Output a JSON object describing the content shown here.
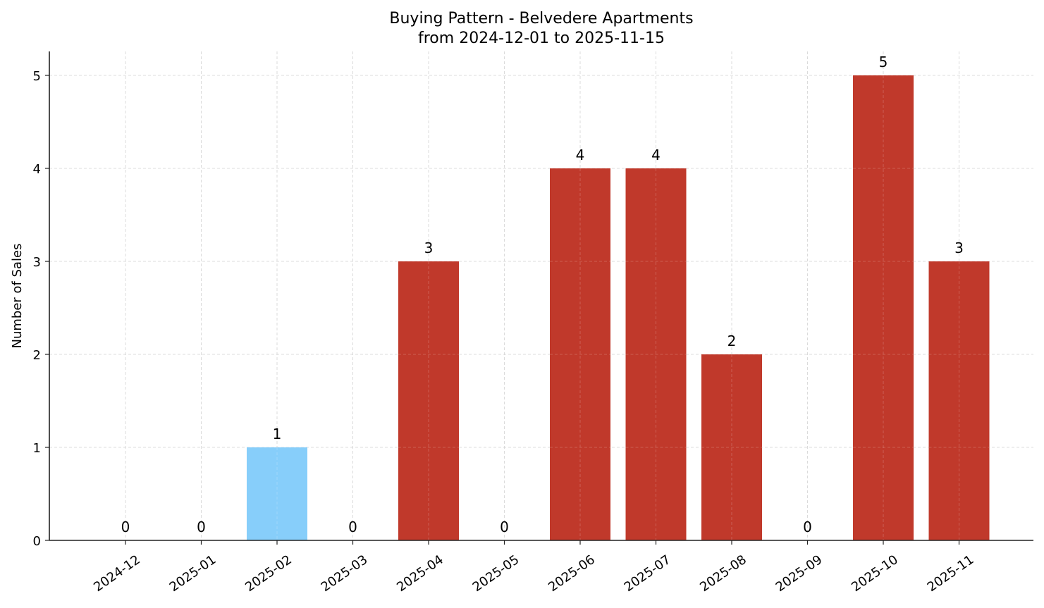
{
  "chart_data": {
    "type": "bar",
    "title": "Buying Pattern - Belvedere Apartments",
    "subtitle": "from 2024-12-01 to 2025-11-15",
    "xlabel": "",
    "ylabel": "Number of Sales",
    "categories": [
      "2024-12",
      "2025-01",
      "2025-02",
      "2025-03",
      "2025-04",
      "2025-05",
      "2025-06",
      "2025-07",
      "2025-08",
      "2025-09",
      "2025-10",
      "2025-11"
    ],
    "values": [
      0,
      0,
      1,
      0,
      3,
      0,
      4,
      4,
      2,
      0,
      5,
      3
    ],
    "bar_colors": [
      "#c0392b",
      "#c0392b",
      "#87cefa",
      "#c0392b",
      "#c0392b",
      "#c0392b",
      "#c0392b",
      "#c0392b",
      "#c0392b",
      "#c0392b",
      "#c0392b",
      "#c0392b"
    ],
    "data_labels": [
      "0",
      "0",
      "1",
      "0",
      "3",
      "0",
      "4",
      "4",
      "2",
      "0",
      "5",
      "3"
    ],
    "ylim": [
      0,
      5.25
    ],
    "yticks": [
      0,
      1,
      2,
      3,
      4,
      5
    ],
    "grid": true,
    "legend": null,
    "xtick_rotation": 35
  }
}
